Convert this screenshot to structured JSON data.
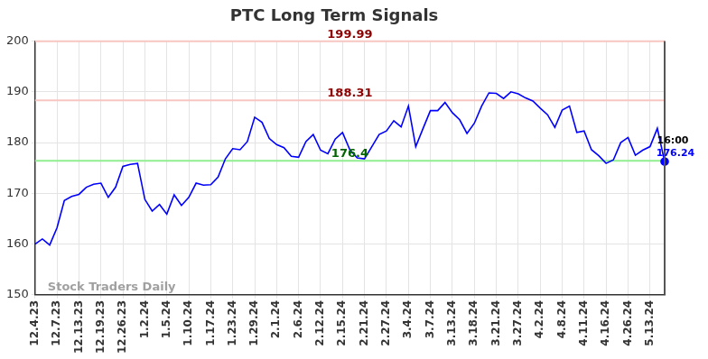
{
  "chart_data": {
    "type": "line",
    "title": "PTC Long Term Signals",
    "categories": [
      "12.4.23",
      null,
      null,
      "12.7.23",
      null,
      null,
      "12.13.23",
      null,
      null,
      "12.19.23",
      null,
      null,
      "12.26.23",
      null,
      null,
      "1.2.24",
      null,
      null,
      "1.5.24",
      null,
      null,
      "1.10.24",
      null,
      null,
      "1.17.24",
      null,
      null,
      "1.23.24",
      null,
      null,
      "1.29.24",
      null,
      null,
      "2.1.24",
      null,
      null,
      "2.6.24",
      null,
      null,
      "2.12.24",
      null,
      null,
      "2.15.24",
      null,
      null,
      "2.21.24",
      null,
      null,
      "2.27.24",
      null,
      null,
      "3.4.24",
      null,
      null,
      "3.7.24",
      null,
      null,
      "3.13.24",
      null,
      null,
      "3.18.24",
      null,
      null,
      "3.21.24",
      null,
      null,
      "3.27.24",
      null,
      null,
      "4.2.24",
      null,
      null,
      "4.8.24",
      null,
      null,
      "4.11.24",
      null,
      null,
      "4.16.24",
      null,
      null,
      "4.26.24",
      null,
      null,
      "5.13.24",
      null,
      null
    ],
    "values": [
      160,
      161,
      159.8,
      163.2,
      168.6,
      169.4,
      169.8,
      171.2,
      171.8,
      172,
      169.2,
      171.2,
      175.3,
      175.7,
      175.9,
      168.8,
      166.5,
      167.8,
      165.9,
      169.7,
      167.6,
      169.2,
      172,
      171.6,
      171.7,
      173.2,
      176.8,
      178.8,
      178.6,
      180.2,
      185,
      184,
      180.8,
      179.6,
      179,
      177.3,
      177.1,
      180.2,
      181.6,
      178.5,
      177.8,
      180.7,
      182,
      178.6,
      177,
      176.8,
      179.2,
      181.6,
      182.3,
      184.3,
      183.1,
      187.2,
      179.2,
      182.8,
      186.3,
      186.3,
      187.9,
      185.9,
      184.5,
      181.8,
      183.8,
      187.2,
      189.8,
      189.7,
      188.7,
      190,
      189.6,
      188.8,
      188.2,
      186.8,
      185.5,
      183,
      186.4,
      187.2,
      182,
      182.3,
      178.6,
      177.4,
      175.9,
      176.6,
      180,
      181,
      177.5,
      178.5,
      179.2,
      182.8,
      176.24
    ],
    "color": "#0000ff",
    "ylim": [
      150,
      200
    ],
    "yticks": [
      150,
      160,
      170,
      180,
      190,
      200
    ],
    "grid": true,
    "signal_lines": [
      {
        "value": 199.99,
        "label": "199.99",
        "color": "#f7c6c0",
        "label_color": "#8b0000"
      },
      {
        "value": 188.31,
        "label": "188.31",
        "color": "#f7c6c0",
        "label_color": "#8b0000"
      },
      {
        "value": 176.4,
        "label": "176.4",
        "color": "#90ee90",
        "label_color": "#006400"
      }
    ],
    "last_time_label": "16:00",
    "last_value_label": "176.24",
    "watermark": "Stock Traders Daily"
  }
}
